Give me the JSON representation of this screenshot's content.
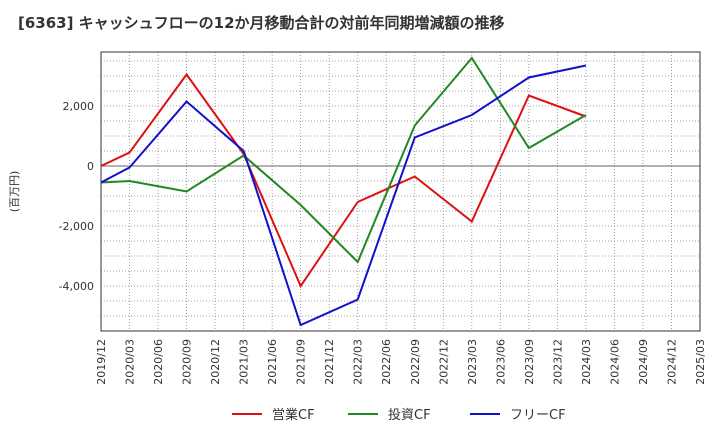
{
  "title": "[6363]  キャッシュフローの12か月移動合計の対前年同期増減額の推移",
  "chart_data": {
    "type": "line",
    "ylabel": "(百万円)",
    "ylim": [
      -5500,
      3800
    ],
    "yticks": [
      -4000,
      -2000,
      0,
      2000
    ],
    "ytick_labels": [
      "-4,000",
      "-2,000",
      "0",
      "2,000"
    ],
    "x_categories": [
      "2019/12",
      "2020/03",
      "2020/06",
      "2020/09",
      "2020/12",
      "2021/03",
      "2021/06",
      "2021/09",
      "2021/12",
      "2022/03",
      "2022/06",
      "2022/09",
      "2022/12",
      "2023/03",
      "2023/06",
      "2023/09",
      "2023/12",
      "2024/03",
      "2024/06",
      "2024/09",
      "2024/12",
      "2025/03"
    ],
    "grid": true,
    "legend_position": "bottom",
    "series": [
      {
        "name": "営業CF",
        "color": "#dd1111",
        "x": [
          "2019/12",
          "2020/03",
          "2020/09",
          "2021/03",
          "2021/09",
          "2022/03",
          "2022/09",
          "2023/03",
          "2023/09",
          "2024/03"
        ],
        "values": [
          0,
          450,
          3050,
          400,
          -4000,
          -1200,
          -350,
          -1850,
          2350,
          1650
        ]
      },
      {
        "name": "投資CF",
        "color": "#228822",
        "x": [
          "2019/12",
          "2020/03",
          "2020/09",
          "2021/03",
          "2021/09",
          "2022/03",
          "2022/09",
          "2023/03",
          "2023/09",
          "2024/03"
        ],
        "values": [
          -550,
          -500,
          -850,
          350,
          -1300,
          -3200,
          1350,
          3600,
          600,
          1700
        ]
      },
      {
        "name": "フリーCF",
        "color": "#1111cc",
        "x": [
          "2019/12",
          "2020/03",
          "2020/09",
          "2021/03",
          "2021/09",
          "2022/03",
          "2022/09",
          "2023/03",
          "2023/09",
          "2024/03"
        ],
        "values": [
          -550,
          -50,
          2150,
          500,
          -5300,
          -4450,
          950,
          1700,
          2950,
          3350
        ]
      }
    ]
  }
}
